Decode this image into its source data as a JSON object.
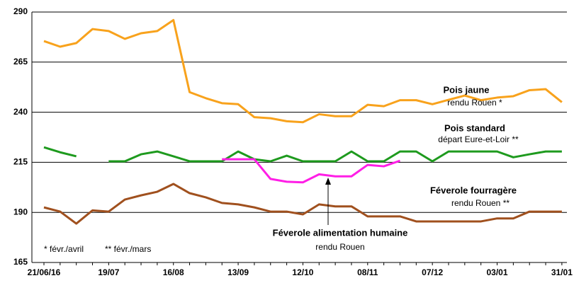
{
  "chart_data": {
    "type": "line",
    "categories": [
      "21/06/16",
      null,
      null,
      null,
      "19/07",
      null,
      null,
      null,
      "16/08",
      null,
      null,
      null,
      "13/09",
      null,
      null,
      null,
      "12/10",
      null,
      null,
      null,
      "08/11",
      null,
      null,
      null,
      "07/12",
      null,
      null,
      null,
      "03/01",
      null,
      null,
      null,
      "31/01"
    ],
    "series": [
      {
        "name": "Pois jaune",
        "sub": "rendu Rouen *",
        "color": "#f8a21c",
        "values": [
          275.5,
          272.7,
          274.5,
          281.5,
          280.5,
          276.6,
          279.4,
          280.5,
          286,
          250,
          247,
          244.5,
          244,
          237.5,
          237,
          235.5,
          235,
          239,
          238,
          238,
          243.7,
          243,
          246,
          246,
          244,
          246.2,
          248.3,
          246,
          247.3,
          248,
          251,
          251.5,
          245
        ]
      },
      {
        "name": "Pois standard",
        "sub": "départ Eure-et-Loir **",
        "color": "#1e9a1e",
        "values": [
          222.5,
          220,
          218,
          null,
          215.5,
          215.5,
          219,
          220.4,
          218,
          215.5,
          215.5,
          215.5,
          220.4,
          216.5,
          215.5,
          218.3,
          215.5,
          215.5,
          215.5,
          220.4,
          215.5,
          215.5,
          220.4,
          220.4,
          215.5,
          220.4,
          220.4,
          220.4,
          220.4,
          217.5,
          219,
          220.4,
          220.4
        ]
      },
      {
        "name": "Féverole alimentation humaine",
        "sub": "rendu Rouen",
        "color": "#ff1ee6",
        "values": [
          null,
          null,
          null,
          null,
          null,
          null,
          null,
          null,
          null,
          null,
          null,
          216.5,
          216.5,
          216.5,
          206.7,
          205.3,
          205,
          209,
          208,
          208,
          213.7,
          213,
          215.8,
          null,
          null,
          null,
          null,
          null,
          null,
          null,
          null,
          null,
          null
        ]
      },
      {
        "name": "Féverole fourragère",
        "sub": "rendu Rouen **",
        "color": "#a0501e",
        "values": [
          192.5,
          190.4,
          184.4,
          191,
          190.4,
          196.4,
          198.5,
          200.3,
          204.2,
          199.6,
          197.5,
          194.7,
          194,
          192.5,
          190.4,
          190.4,
          189,
          194,
          193,
          193,
          188,
          188,
          188,
          185.5,
          185.5,
          185.5,
          185.5,
          185.5,
          187,
          187,
          190.4,
          190.4,
          190.4
        ]
      }
    ],
    "footnotes": [
      "* févr./avril",
      "** févr./mars"
    ],
    "ylim": [
      165,
      290
    ],
    "yticks": [
      165,
      190,
      215,
      240,
      265,
      290
    ],
    "grid": true
  }
}
